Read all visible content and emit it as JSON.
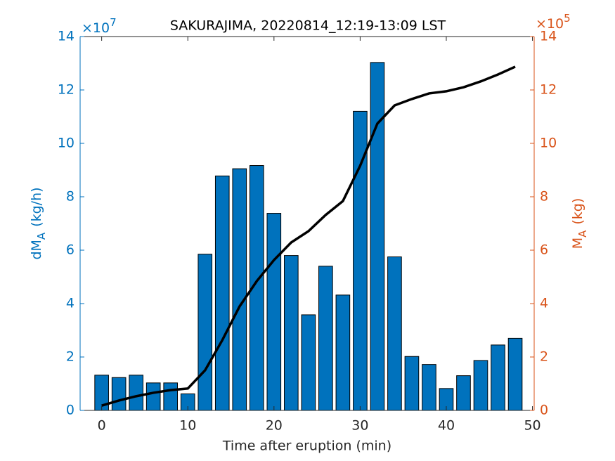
{
  "chart_data": {
    "type": "bar",
    "title": "SAKURAJIMA, 20220814_12:19-13:09 LST",
    "xlabel": "Time after eruption (min)",
    "ylabel": {
      "main": "dM",
      "sub": "A",
      "unit": "(kg/h)"
    },
    "y2label": {
      "main": "M",
      "sub": "A",
      "unit": "(kg)"
    },
    "y_exponent": {
      "base": "×10",
      "power": "7"
    },
    "y2_exponent": {
      "base": "×10",
      "power": "5"
    },
    "x": [
      0,
      2,
      4,
      6,
      8,
      10,
      12,
      14,
      16,
      18,
      20,
      22,
      24,
      26,
      28,
      30,
      32,
      34,
      36,
      38,
      40,
      42,
      44,
      46,
      48
    ],
    "series": [
      {
        "type": "bar",
        "color": "#0072BD",
        "axis": "y",
        "values": [
          1.32,
          1.23,
          1.32,
          1.03,
          1.03,
          0.62,
          5.85,
          8.78,
          9.05,
          9.17,
          7.38,
          5.8,
          3.58,
          5.4,
          4.32,
          11.2,
          13.03,
          5.75,
          2.02,
          1.72,
          0.82,
          1.3,
          1.87,
          2.45,
          2.7
        ]
      },
      {
        "type": "line",
        "color": "#000000",
        "axis": "y2",
        "values": [
          0.18,
          0.37,
          0.53,
          0.66,
          0.76,
          0.82,
          1.5,
          2.63,
          3.89,
          4.84,
          5.63,
          6.29,
          6.71,
          7.32,
          7.84,
          9.16,
          10.74,
          11.42,
          11.66,
          11.87,
          11.95,
          12.1,
          12.32,
          12.58,
          12.87
        ]
      }
    ],
    "xlim": [
      -2.5,
      50.2
    ],
    "xticks": [
      0,
      10,
      20,
      30,
      40,
      50
    ],
    "ylim": [
      0,
      14
    ],
    "yticks": [
      0,
      2,
      4,
      6,
      8,
      10,
      12,
      14
    ],
    "y2lim": [
      0,
      14
    ],
    "y2ticks": [
      0,
      2,
      4,
      6,
      8,
      10,
      12,
      14
    ],
    "y_color": "#0072BD",
    "y2_color": "#D95319"
  }
}
